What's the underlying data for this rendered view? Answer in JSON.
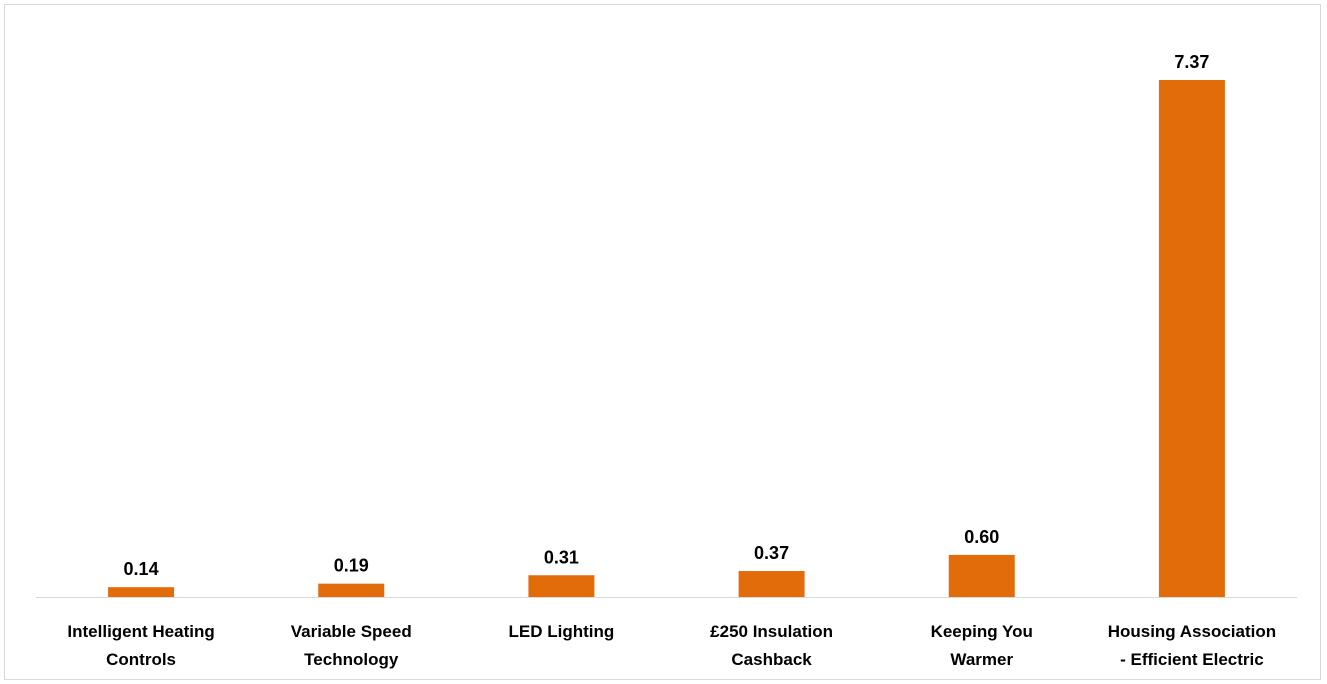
{
  "chart_data": {
    "type": "bar",
    "categories": [
      [
        "Intelligent Heating",
        "Controls"
      ],
      [
        "Variable Speed",
        "Technology"
      ],
      [
        "LED Lighting"
      ],
      [
        "£250 Insulation",
        "Cashback"
      ],
      [
        "Keeping You",
        "Warmer"
      ],
      [
        "Housing Association",
        "- Efficient Electric"
      ]
    ],
    "values": [
      0.14,
      0.19,
      0.31,
      0.37,
      0.6,
      7.37
    ],
    "value_labels": [
      "0.14",
      "0.19",
      "0.31",
      "0.37",
      "0.60",
      "7.37"
    ],
    "title": "",
    "xlabel": "",
    "ylabel": "",
    "ylim": [
      0,
      7.37
    ],
    "bar_color": "#E36C0A",
    "axis_color": "#d9d9d9",
    "grid": false,
    "legend": "none"
  }
}
